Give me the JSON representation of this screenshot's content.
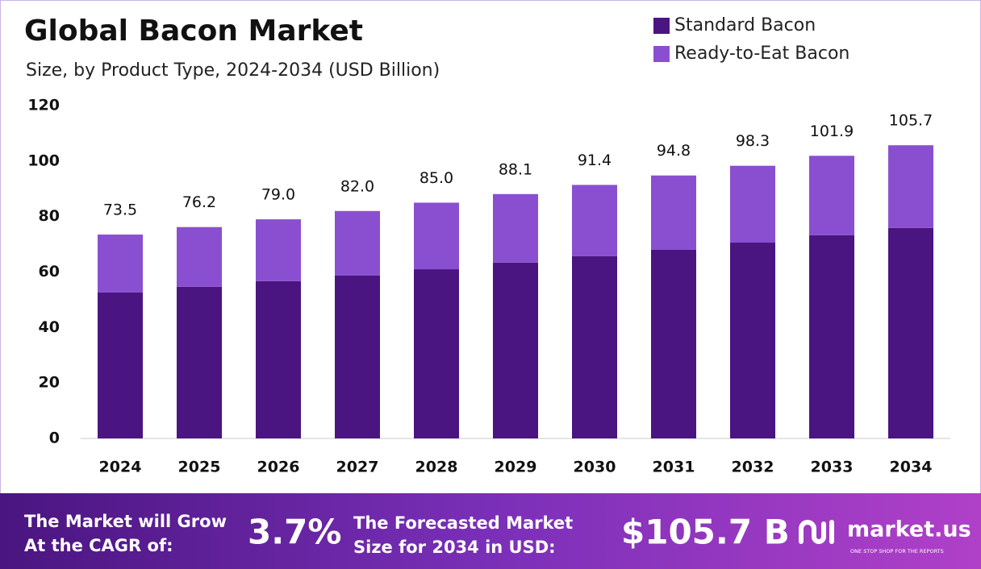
{
  "chart_data": {
    "type": "stacked_bar",
    "title": "Global Bacon Market",
    "subtitle": "Size, by Product Type, 2024-2034 (USD Billion)",
    "categories": [
      "2024",
      "2025",
      "2026",
      "2027",
      "2028",
      "2029",
      "2030",
      "2031",
      "2032",
      "2033",
      "2034"
    ],
    "series": [
      {
        "name": "Standard Bacon",
        "color": "#4a1580",
        "values": [
          52.6,
          54.7,
          56.7,
          58.7,
          61.0,
          63.4,
          65.7,
          68.0,
          70.6,
          73.3,
          75.9
        ]
      },
      {
        "name": "Ready-to-Eat Bacon",
        "color": "#8a4fd0",
        "values": [
          20.9,
          21.5,
          22.3,
          23.3,
          24.0,
          24.7,
          25.7,
          26.8,
          27.7,
          28.6,
          29.8
        ]
      }
    ],
    "totals": [
      73.5,
      76.2,
      79.0,
      82.0,
      85.0,
      88.1,
      91.4,
      94.8,
      98.3,
      101.9,
      105.7
    ],
    "total_labels": [
      "73.5",
      "76.2",
      "79.0",
      "82.0",
      "85.0",
      "88.1",
      "91.4",
      "94.8",
      "98.3",
      "101.9",
      "105.7"
    ],
    "ylim": [
      0,
      120
    ],
    "yticks": [
      0,
      20,
      40,
      60,
      80,
      100,
      120
    ],
    "legend": "top-right"
  },
  "footer": {
    "cagr_text": [
      "The Market will Grow",
      "At the CAGR of:"
    ],
    "cagr_value": "3.7%",
    "forecast_text": [
      "The Forecasted Market",
      "Size for 2034 in USD:"
    ],
    "forecast_value": "$105.7 B",
    "brand": "market.us",
    "tagline": "ONE STOP SHOP FOR THE REPORTS"
  }
}
